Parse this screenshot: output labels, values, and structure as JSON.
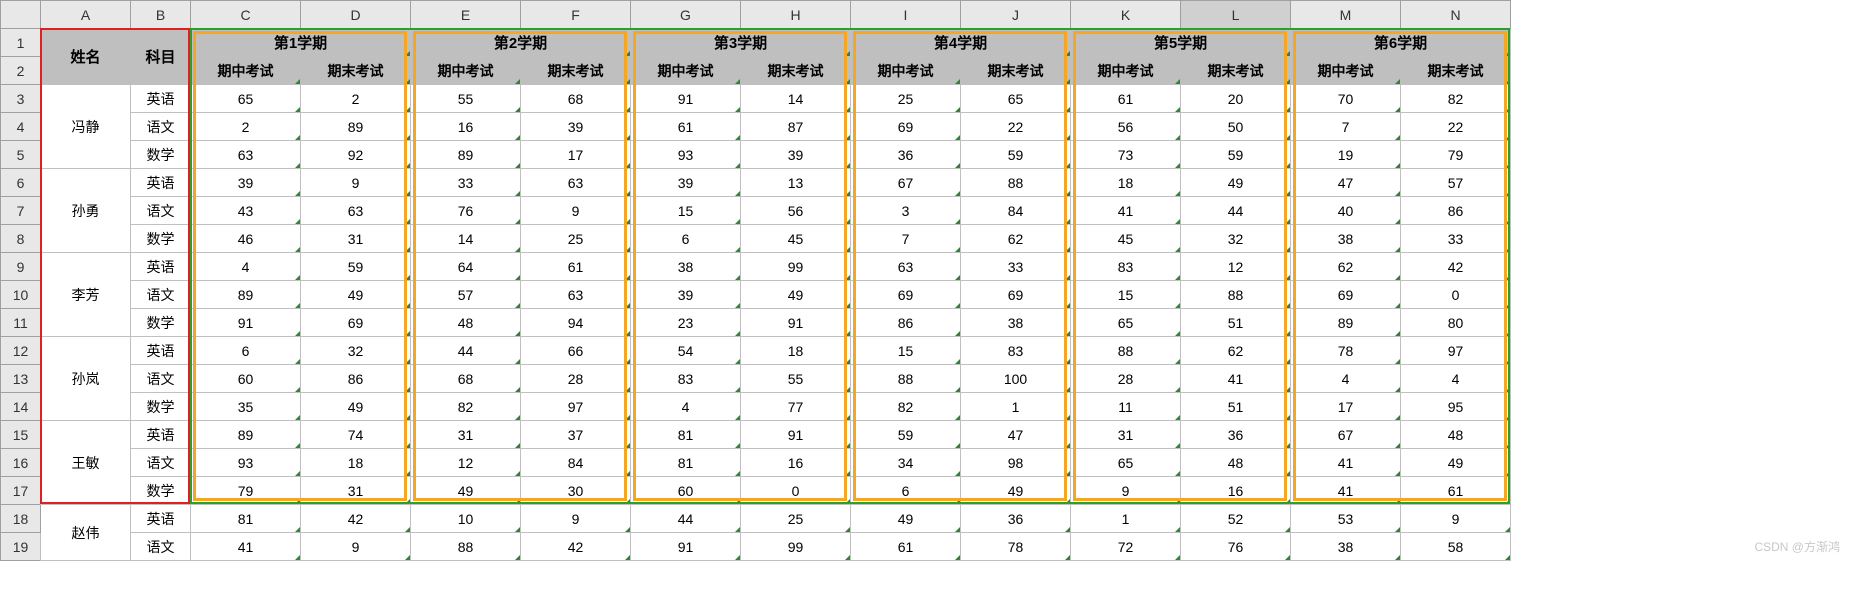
{
  "columns": [
    "A",
    "B",
    "C",
    "D",
    "E",
    "F",
    "G",
    "H",
    "I",
    "J",
    "K",
    "L",
    "M",
    "N"
  ],
  "selected_col": "L",
  "row_count": 19,
  "headers": {
    "name": "姓名",
    "subject": "科目",
    "terms": [
      "第1学期",
      "第2学期",
      "第3学期",
      "第4学期",
      "第5学期",
      "第6学期"
    ],
    "mid": "期中考试",
    "final": "期末考试"
  },
  "students": [
    {
      "name": "冯静",
      "rows": [
        {
          "subj": "英语",
          "v": [
            65,
            2,
            55,
            68,
            91,
            14,
            25,
            65,
            61,
            20,
            70,
            82
          ]
        },
        {
          "subj": "语文",
          "v": [
            2,
            89,
            16,
            39,
            61,
            87,
            69,
            22,
            56,
            50,
            7,
            22
          ]
        },
        {
          "subj": "数学",
          "v": [
            63,
            92,
            89,
            17,
            93,
            39,
            36,
            59,
            73,
            59,
            19,
            79
          ]
        }
      ]
    },
    {
      "name": "孙勇",
      "rows": [
        {
          "subj": "英语",
          "v": [
            39,
            9,
            33,
            63,
            39,
            13,
            67,
            88,
            18,
            49,
            47,
            57
          ]
        },
        {
          "subj": "语文",
          "v": [
            43,
            63,
            76,
            9,
            15,
            56,
            3,
            84,
            41,
            44,
            40,
            86
          ]
        },
        {
          "subj": "数学",
          "v": [
            46,
            31,
            14,
            25,
            6,
            45,
            7,
            62,
            45,
            32,
            38,
            33
          ]
        }
      ]
    },
    {
      "name": "李芳",
      "rows": [
        {
          "subj": "英语",
          "v": [
            4,
            59,
            64,
            61,
            38,
            99,
            63,
            33,
            83,
            12,
            62,
            42
          ]
        },
        {
          "subj": "语文",
          "v": [
            89,
            49,
            57,
            63,
            39,
            49,
            69,
            69,
            15,
            88,
            69,
            0
          ]
        },
        {
          "subj": "数学",
          "v": [
            91,
            69,
            48,
            94,
            23,
            91,
            86,
            38,
            65,
            51,
            89,
            80
          ]
        }
      ]
    },
    {
      "name": "孙岚",
      "rows": [
        {
          "subj": "英语",
          "v": [
            6,
            32,
            44,
            66,
            54,
            18,
            15,
            83,
            88,
            62,
            78,
            97
          ]
        },
        {
          "subj": "语文",
          "v": [
            60,
            86,
            68,
            28,
            83,
            55,
            88,
            100,
            28,
            41,
            4,
            4
          ]
        },
        {
          "subj": "数学",
          "v": [
            35,
            49,
            82,
            97,
            4,
            77,
            82,
            1,
            11,
            51,
            17,
            95
          ]
        }
      ]
    },
    {
      "name": "王敏",
      "rows": [
        {
          "subj": "英语",
          "v": [
            89,
            74,
            31,
            37,
            81,
            91,
            59,
            47,
            31,
            36,
            67,
            48
          ]
        },
        {
          "subj": "语文",
          "v": [
            93,
            18,
            12,
            84,
            81,
            16,
            34,
            98,
            65,
            48,
            41,
            49
          ]
        },
        {
          "subj": "数学",
          "v": [
            79,
            31,
            49,
            30,
            60,
            0,
            6,
            49,
            9,
            16,
            41,
            61
          ]
        }
      ]
    },
    {
      "name": "赵伟",
      "rows": [
        {
          "subj": "英语",
          "v": [
            81,
            42,
            10,
            9,
            44,
            25,
            49,
            36,
            1,
            52,
            53,
            9
          ]
        },
        {
          "subj": "语文",
          "v": [
            41,
            9,
            88,
            42,
            91,
            99,
            61,
            78,
            72,
            76,
            38,
            58
          ]
        }
      ]
    }
  ],
  "watermark": "CSDN @方渐鸿",
  "colors": {
    "red": "#e02020",
    "green": "#2aa02a",
    "orange": "#f5a623",
    "hdr_bg": "#bfbfbf",
    "colrow_bg": "#e8e8e8"
  }
}
